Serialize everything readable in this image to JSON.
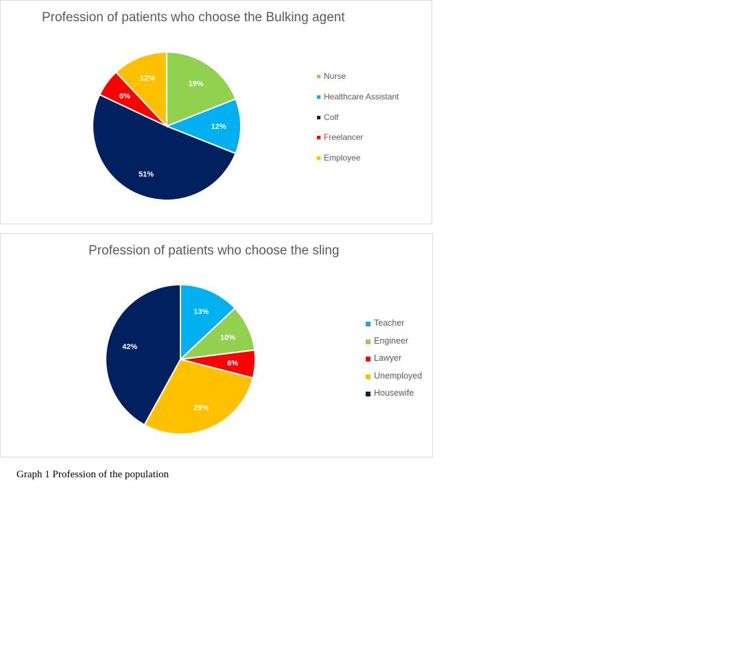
{
  "chart_data": [
    {
      "type": "pie",
      "title": "Profession of patients who choose the Bulking agent",
      "slices": [
        {
          "label": "Nurse",
          "value": 19,
          "display": "19%",
          "color": "#92d050"
        },
        {
          "label": "Healthcare Assistant",
          "value": 12,
          "display": "12%",
          "color": "#00b0f0"
        },
        {
          "label": "Colf",
          "value": 51,
          "display": "51%",
          "color": "#002060"
        },
        {
          "label": "Freelancer",
          "value": 6,
          "display": "6%",
          "color": "#ff0000"
        },
        {
          "label": "Employee",
          "value": 12,
          "display": "12%",
          "color": "#ffc000"
        }
      ],
      "legend_position": "right"
    },
    {
      "type": "pie",
      "title": "Profession of patients who choose the sling",
      "slices": [
        {
          "label": "Teacher",
          "value": 13,
          "display": "13%",
          "color": "#00b0f0"
        },
        {
          "label": "Engineer",
          "value": 10,
          "display": "10%",
          "color": "#92d050"
        },
        {
          "label": "Lawyer",
          "value": 6,
          "display": "6%",
          "color": "#ff0000"
        },
        {
          "label": "Unemployed",
          "value": 29,
          "display": "29%",
          "color": "#ffc000"
        },
        {
          "label": "Housewife",
          "value": 42,
          "display": "42%",
          "color": "#002060"
        }
      ],
      "legend_position": "right"
    }
  ],
  "caption": "Graph 1 Profession of the population"
}
